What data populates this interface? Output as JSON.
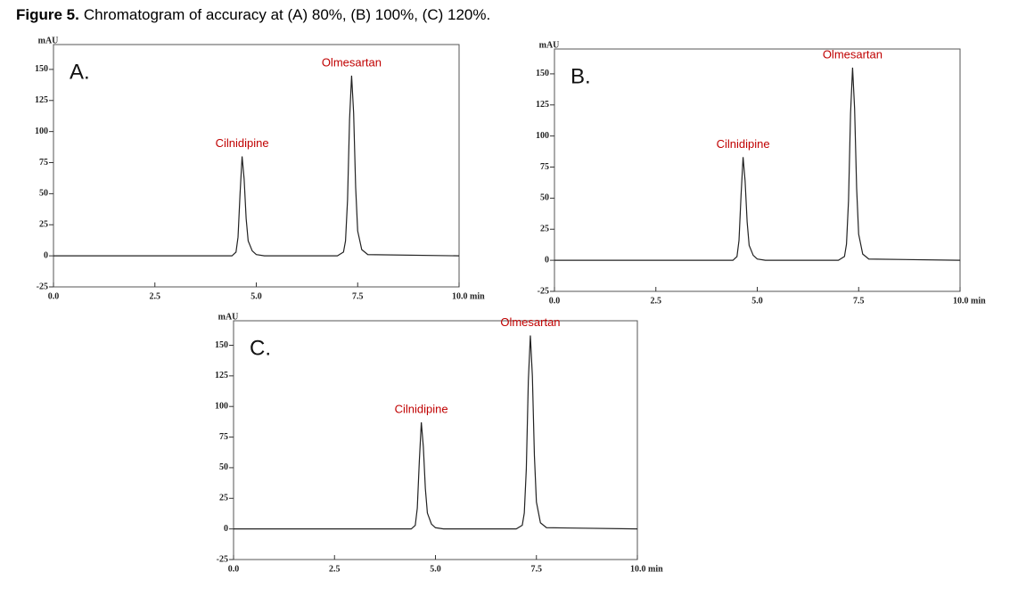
{
  "caption": {
    "label": "Figure 5.",
    "text": "Chromatogram of accuracy at (A) 80%, (B) 100%, (C) 120%."
  },
  "chart_data": [
    {
      "type": "line",
      "panel": "A.",
      "y_label": "mAU",
      "x": [
        0,
        4.4,
        4.5,
        4.55,
        4.6,
        4.65,
        4.7,
        4.75,
        4.8,
        4.9,
        5.0,
        5.2,
        7.0,
        7.15,
        7.2,
        7.25,
        7.3,
        7.35,
        7.4,
        7.45,
        7.5,
        7.6,
        7.75,
        10
      ],
      "series": [
        {
          "color": "#222222",
          "values": [
            0,
            0,
            3,
            15,
            50,
            80,
            62,
            30,
            12,
            4,
            1,
            0,
            0,
            3,
            12,
            45,
            110,
            145,
            115,
            55,
            20,
            5,
            1,
            0
          ]
        }
      ],
      "annotations": [
        "Cilnidipine",
        "Olmesartan"
      ],
      "annotation_color": "#c00000",
      "xlim": [
        0,
        10
      ],
      "ylim": [
        -25,
        170
      ],
      "xticks": [
        {
          "value": 0,
          "label": "0.0"
        },
        {
          "value": 2.5,
          "label": "2.5"
        },
        {
          "value": 5,
          "label": "5.0"
        },
        {
          "value": 7.5,
          "label": "7.5"
        },
        {
          "value": 10,
          "label": "10.0 min"
        }
      ],
      "yticks": [
        -25,
        0,
        25,
        50,
        75,
        100,
        125,
        150
      ]
    },
    {
      "type": "line",
      "panel": "B.",
      "y_label": "mAU",
      "x": [
        0,
        4.4,
        4.5,
        4.55,
        4.6,
        4.65,
        4.7,
        4.75,
        4.8,
        4.9,
        5.0,
        5.2,
        7.0,
        7.15,
        7.2,
        7.25,
        7.3,
        7.35,
        7.4,
        7.45,
        7.5,
        7.6,
        7.75,
        10
      ],
      "series": [
        {
          "color": "#222222",
          "values": [
            0,
            0,
            3,
            16,
            52,
            83,
            64,
            31,
            12,
            4,
            1,
            0,
            0,
            3,
            13,
            48,
            118,
            155,
            122,
            58,
            21,
            5,
            1,
            0
          ]
        }
      ],
      "annotations": [
        "Cilnidipine",
        "Olmesartan"
      ],
      "annotation_color": "#c00000",
      "xlim": [
        0,
        10
      ],
      "ylim": [
        -25,
        170
      ],
      "xticks": [
        {
          "value": 0,
          "label": "0.0"
        },
        {
          "value": 2.5,
          "label": "2.5"
        },
        {
          "value": 5,
          "label": "5.0"
        },
        {
          "value": 7.5,
          "label": "7.5"
        },
        {
          "value": 10,
          "label": "10.0 min"
        }
      ],
      "yticks": [
        -25,
        0,
        25,
        50,
        75,
        100,
        125,
        150
      ]
    },
    {
      "type": "line",
      "panel": "C.",
      "y_label": "mAU",
      "x": [
        0,
        4.4,
        4.5,
        4.55,
        4.6,
        4.65,
        4.7,
        4.75,
        4.8,
        4.9,
        5.0,
        5.2,
        7.0,
        7.15,
        7.2,
        7.25,
        7.3,
        7.35,
        7.4,
        7.45,
        7.5,
        7.6,
        7.75,
        10
      ],
      "series": [
        {
          "color": "#222222",
          "values": [
            0,
            0,
            3,
            17,
            55,
            87,
            67,
            33,
            13,
            4,
            1,
            0,
            0,
            3,
            13,
            49,
            121,
            158,
            125,
            60,
            22,
            5,
            1,
            0
          ]
        }
      ],
      "annotations": [
        "Cilnidipine",
        "Olmesartan"
      ],
      "annotation_color": "#c00000",
      "xlim": [
        0,
        10
      ],
      "ylim": [
        -25,
        170
      ],
      "xticks": [
        {
          "value": 0,
          "label": "0.0"
        },
        {
          "value": 2.5,
          "label": "2.5"
        },
        {
          "value": 5,
          "label": "5.0"
        },
        {
          "value": 7.5,
          "label": "7.5"
        },
        {
          "value": 10,
          "label": "10.0 min"
        }
      ],
      "yticks": [
        -25,
        0,
        25,
        50,
        75,
        100,
        125,
        150
      ]
    }
  ]
}
